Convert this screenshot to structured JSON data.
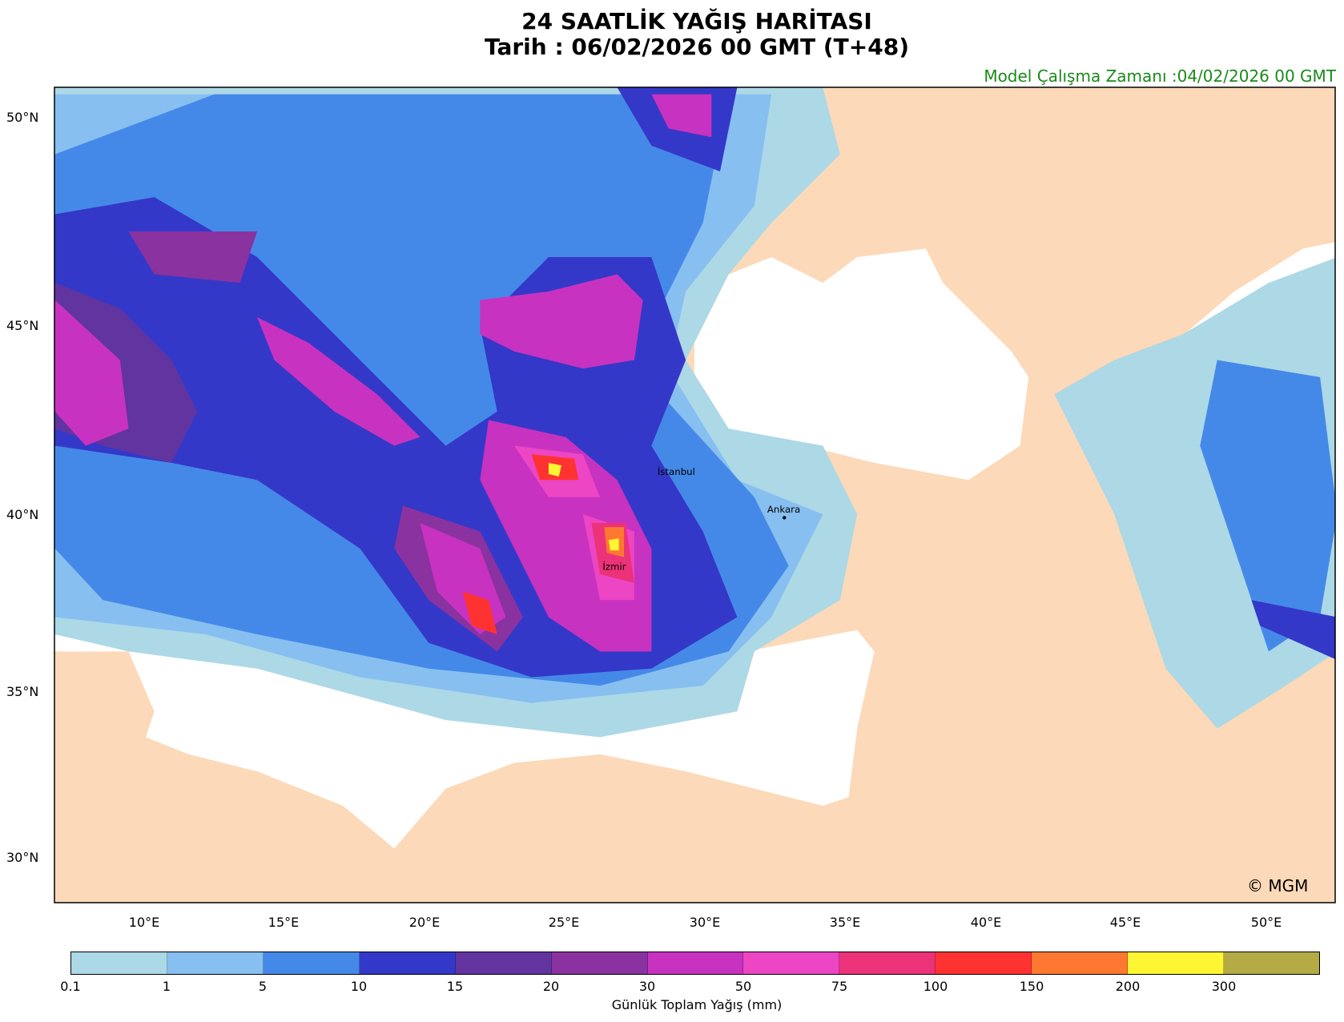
{
  "title": {
    "line1": "24 SAATLİK YAĞIŞ HARİTASI",
    "line2": "Tarih : 06/02/2026  00 GMT (T+48)"
  },
  "model_run": "Model Çalışma Zamanı :04/02/2026  00 GMT",
  "lat_labels": [
    "50°N",
    "45°N",
    "40°N",
    "35°N",
    "30°N"
  ],
  "lon_labels": [
    "10°E",
    "15°E",
    "20°E",
    "25°E",
    "30°E",
    "35°E",
    "40°E",
    "45°E",
    "50°E"
  ],
  "cities": [
    "İstanbul",
    "Ankara",
    "İzmir"
  ],
  "copyright": "© MGM",
  "colorbar": {
    "label": "Günlük Toplam Yağış (mm)",
    "ticks": [
      "0.1",
      "1",
      "5",
      "10",
      "15",
      "20",
      "30",
      "50",
      "75",
      "100",
      "150",
      "200",
      "300"
    ],
    "colors": [
      "#add8e6",
      "#87bff0",
      "#4589e8",
      "#3438c8",
      "#6234a0",
      "#8a32a0",
      "#c832c0",
      "#ec46c4",
      "#ec3278",
      "#ff3232",
      "#ff7832",
      "#fff532",
      "#b4aa46"
    ]
  },
  "colors": {
    "land": "#fcd9b8",
    "sea": "#ffffff"
  }
}
